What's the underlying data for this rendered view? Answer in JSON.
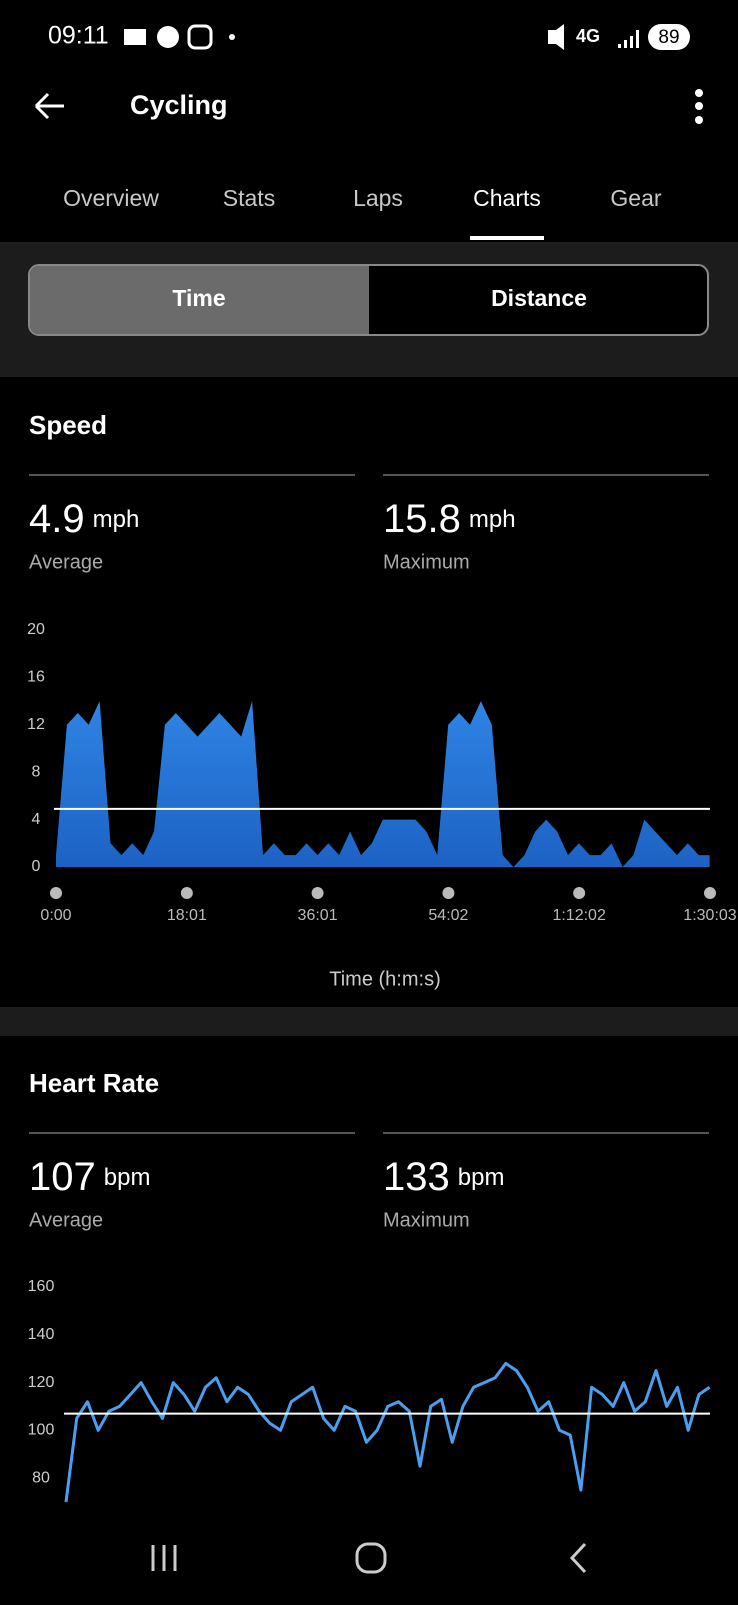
{
  "status_bar": {
    "time": "09:11",
    "network": "4G",
    "battery": "89"
  },
  "header": {
    "title": "Cycling"
  },
  "tabs": [
    "Overview",
    "Stats",
    "Laps",
    "Charts",
    "Gear"
  ],
  "active_tab": 3,
  "toggle": [
    "Time",
    "Distance"
  ],
  "speed": {
    "title": "Speed",
    "stats": [
      {
        "value": "4.9",
        "unit": "mph",
        "label": "Average"
      },
      {
        "value": "15.8",
        "unit": "mph",
        "label": "Maximum"
      }
    ],
    "chart": {
      "type": "area",
      "color": "#2f84e4",
      "average": 4.9,
      "x": [
        0,
        90,
        180,
        270,
        360,
        450,
        540,
        630,
        720,
        810,
        900,
        990,
        1080,
        1170,
        1260,
        1350,
        1440,
        1530,
        1620,
        1710,
        1800,
        1890,
        1980,
        2070,
        2160,
        2250,
        2340,
        2430,
        2520,
        2610,
        2700,
        2790,
        2880,
        2970,
        3060,
        3150,
        3240,
        3330,
        3420,
        3510,
        3600,
        3690,
        3780,
        3870,
        3960,
        4050,
        4140,
        4230,
        4320,
        4410,
        4500,
        4590,
        4680,
        4770,
        4860,
        4950,
        5040,
        5130,
        5220,
        5310,
        5400
      ],
      "values": [
        1,
        12,
        13,
        12,
        14,
        2,
        1,
        2,
        1,
        3,
        12,
        13,
        12,
        11,
        12,
        13,
        12,
        11,
        14,
        1,
        2,
        1,
        1,
        2,
        1,
        2,
        1,
        3,
        1,
        2,
        4,
        4,
        4,
        4,
        3,
        1,
        12,
        13,
        12,
        14,
        12,
        1,
        0,
        1,
        3,
        4,
        3,
        1,
        2,
        1,
        1,
        2,
        0,
        1,
        4,
        3,
        2,
        1,
        2,
        1,
        1
      ],
      "xlim": [
        0,
        5403
      ],
      "xticks": [
        {
          "value": 0,
          "label": "0:00"
        },
        {
          "value": 1081,
          "label": "18:01"
        },
        {
          "value": 2161,
          "label": "36:01"
        },
        {
          "value": 3242,
          "label": "54:02"
        },
        {
          "value": 4322,
          "label": "1:12:02"
        },
        {
          "value": 5403,
          "label": "1:30:03"
        }
      ],
      "ylim": [
        0,
        20
      ],
      "yticks": [
        0,
        4,
        8,
        12,
        16,
        20
      ],
      "xlabel": "Time (h:m:s)"
    }
  },
  "heart_rate": {
    "title": "Heart Rate",
    "stats": [
      {
        "value": "107",
        "unit": "bpm",
        "label": "Average"
      },
      {
        "value": "133",
        "unit": "bpm",
        "label": "Maximum"
      }
    ],
    "chart": {
      "type": "line",
      "color": "#4a9ff0",
      "average": 107,
      "x": [
        0,
        90,
        180,
        270,
        360,
        450,
        540,
        630,
        720,
        810,
        900,
        990,
        1080,
        1170,
        1260,
        1350,
        1440,
        1530,
        1620,
        1710,
        1800,
        1890,
        1980,
        2070,
        2160,
        2250,
        2340,
        2430,
        2520,
        2610,
        2700,
        2790,
        2880,
        2970,
        3060,
        3150,
        3240,
        3330,
        3420,
        3510,
        3600,
        3690,
        3780,
        3870,
        3960,
        4050,
        4140,
        4230,
        4320,
        4410,
        4500,
        4590,
        4680,
        4770,
        4860,
        4950,
        5040,
        5130,
        5220,
        5310,
        5400
      ],
      "values": [
        70,
        105,
        112,
        100,
        108,
        110,
        115,
        120,
        112,
        105,
        120,
        115,
        108,
        118,
        122,
        112,
        118,
        115,
        108,
        103,
        100,
        112,
        115,
        118,
        105,
        100,
        110,
        108,
        95,
        100,
        110,
        112,
        108,
        85,
        110,
        113,
        95,
        110,
        118,
        120,
        122,
        128,
        125,
        118,
        108,
        112,
        100,
        98,
        75,
        118,
        115,
        110,
        120,
        108,
        112,
        125,
        110,
        118,
        100,
        115,
        118
      ],
      "xlim": [
        0,
        5403
      ],
      "ylim": [
        70,
        160
      ],
      "yticks": [
        80,
        100,
        120,
        140,
        160
      ]
    }
  }
}
